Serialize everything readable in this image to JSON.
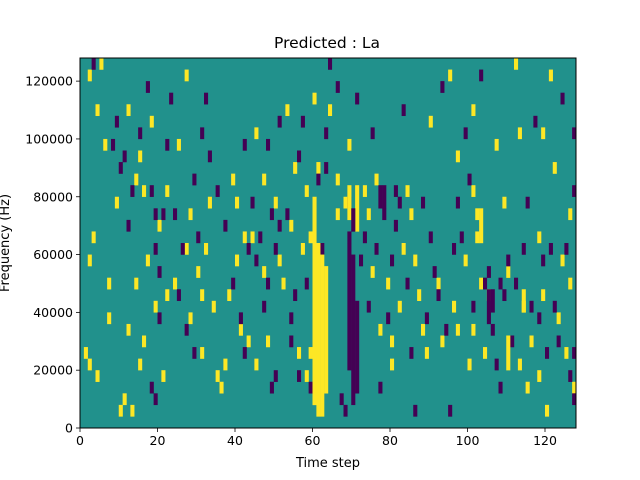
{
  "chart_data": {
    "type": "heatmap",
    "title": "Predicted : La",
    "xlabel": "Time step",
    "ylabel": "Frequency (Hz)",
    "xlim": [
      0,
      128
    ],
    "ylim": [
      0,
      128000
    ],
    "xticks": [
      0,
      20,
      40,
      60,
      80,
      100,
      120
    ],
    "xtick_labels": [
      "0",
      "20",
      "40",
      "60",
      "80",
      "100",
      "120"
    ],
    "yticks": [
      0,
      20000,
      40000,
      60000,
      80000,
      100000,
      120000
    ],
    "ytick_labels": [
      "0",
      "20000",
      "40000",
      "60000",
      "80000",
      "100000",
      "120000"
    ],
    "grid": false,
    "legend": "none",
    "colors": {
      "background": "#21918c",
      "high": "#fde725",
      "low": "#440154"
    },
    "value_levels": {
      "low": 0,
      "mid": 1,
      "high": 2
    },
    "cell_height_hz": 4000,
    "cells_high": [
      [
        2,
        120000
      ],
      [
        5,
        124000
      ],
      [
        4,
        108000
      ],
      [
        3,
        64000
      ],
      [
        2,
        56000
      ],
      [
        1,
        24000
      ],
      [
        2,
        20000
      ],
      [
        4,
        16000
      ],
      [
        6,
        96000
      ],
      [
        7,
        48000
      ],
      [
        7,
        36000
      ],
      [
        9,
        76000
      ],
      [
        11,
        8000
      ],
      [
        12,
        32000
      ],
      [
        10,
        4000
      ],
      [
        13,
        4000
      ],
      [
        12,
        108000
      ],
      [
        15,
        92000
      ],
      [
        18,
        104000
      ],
      [
        14,
        84000
      ],
      [
        16,
        80000
      ],
      [
        17,
        56000
      ],
      [
        14,
        48000
      ],
      [
        16,
        28000
      ],
      [
        15,
        20000
      ],
      [
        20,
        68000
      ],
      [
        22,
        80000
      ],
      [
        24,
        48000
      ],
      [
        22,
        44000
      ],
      [
        19,
        40000
      ],
      [
        21,
        16000
      ],
      [
        27,
        120000
      ],
      [
        25,
        96000
      ],
      [
        28,
        72000
      ],
      [
        27,
        60000
      ],
      [
        30,
        52000
      ],
      [
        28,
        36000
      ],
      [
        31,
        24000
      ],
      [
        33,
        76000
      ],
      [
        32,
        60000
      ],
      [
        34,
        40000
      ],
      [
        31,
        44000
      ],
      [
        36,
        12000
      ],
      [
        35,
        16000
      ],
      [
        39,
        84000
      ],
      [
        40,
        76000
      ],
      [
        42,
        64000
      ],
      [
        40,
        56000
      ],
      [
        38,
        44000
      ],
      [
        41,
        32000
      ],
      [
        43,
        28000
      ],
      [
        37,
        20000
      ],
      [
        45,
        100000
      ],
      [
        47,
        84000
      ],
      [
        44,
        64000
      ],
      [
        47,
        52000
      ],
      [
        45,
        20000
      ],
      [
        50,
        76000
      ],
      [
        51,
        56000
      ],
      [
        52,
        48000
      ],
      [
        48,
        28000
      ],
      [
        53,
        108000
      ],
      [
        54,
        68000
      ],
      [
        55,
        88000
      ],
      [
        57,
        60000
      ],
      [
        56,
        24000
      ],
      [
        58,
        16000
      ],
      [
        60,
        112000
      ],
      [
        58,
        80000
      ],
      [
        60,
        76000
      ],
      [
        61,
        88000
      ],
      [
        60,
        8000
      ],
      [
        64,
        108000
      ],
      [
        66,
        84000
      ],
      [
        66,
        72000
      ],
      [
        68,
        76000
      ],
      [
        69,
        96000
      ],
      [
        73,
        80000
      ],
      [
        74,
        72000
      ],
      [
        76,
        84000
      ],
      [
        75,
        52000
      ],
      [
        77,
        32000
      ],
      [
        79,
        48000
      ],
      [
        80,
        28000
      ],
      [
        80,
        20000
      ],
      [
        83,
        60000
      ],
      [
        82,
        40000
      ],
      [
        84,
        80000
      ],
      [
        85,
        72000
      ],
      [
        86,
        56000
      ],
      [
        87,
        44000
      ],
      [
        88,
        32000
      ],
      [
        89,
        24000
      ],
      [
        90,
        104000
      ],
      [
        92,
        48000
      ],
      [
        93,
        28000
      ],
      [
        95,
        120000
      ],
      [
        96,
        40000
      ],
      [
        97,
        92000
      ],
      [
        97,
        32000
      ],
      [
        99,
        56000
      ],
      [
        100,
        20000
      ],
      [
        101,
        108000
      ],
      [
        101,
        80000
      ],
      [
        102,
        72000
      ],
      [
        102,
        64000
      ],
      [
        103,
        48000
      ],
      [
        101,
        32000
      ],
      [
        104,
        24000
      ],
      [
        105,
        44000
      ],
      [
        107,
        96000
      ],
      [
        109,
        76000
      ],
      [
        110,
        52000
      ],
      [
        112,
        124000
      ],
      [
        113,
        100000
      ],
      [
        114,
        40000
      ],
      [
        113,
        20000
      ],
      [
        116,
        28000
      ],
      [
        115,
        12000
      ],
      [
        118,
        16000
      ],
      [
        118,
        64000
      ],
      [
        119,
        44000
      ],
      [
        119,
        100000
      ],
      [
        120,
        4000
      ],
      [
        121,
        120000
      ],
      [
        122,
        88000
      ],
      [
        123,
        36000
      ],
      [
        124,
        56000
      ],
      [
        125,
        24000
      ],
      [
        126,
        48000
      ],
      [
        126,
        72000
      ],
      [
        127,
        12000
      ]
    ],
    "cells_low": [
      [
        3,
        124000
      ],
      [
        9,
        104000
      ],
      [
        8,
        96000
      ],
      [
        10,
        88000
      ],
      [
        11,
        92000
      ],
      [
        12,
        68000
      ],
      [
        13,
        80000
      ],
      [
        15,
        100000
      ],
      [
        17,
        116000
      ],
      [
        18,
        80000
      ],
      [
        19,
        60000
      ],
      [
        20,
        52000
      ],
      [
        19,
        72000
      ],
      [
        21,
        72000
      ],
      [
        20,
        36000
      ],
      [
        18,
        12000
      ],
      [
        19,
        8000
      ],
      [
        23,
        112000
      ],
      [
        22,
        96000
      ],
      [
        24,
        72000
      ],
      [
        26,
        60000
      ],
      [
        25,
        44000
      ],
      [
        27,
        32000
      ],
      [
        29,
        24000
      ],
      [
        29,
        84000
      ],
      [
        30,
        64000
      ],
      [
        31,
        100000
      ],
      [
        32,
        112000
      ],
      [
        33,
        92000
      ],
      [
        35,
        80000
      ],
      [
        37,
        68000
      ],
      [
        39,
        48000
      ],
      [
        42,
        96000
      ],
      [
        41,
        36000
      ],
      [
        42,
        24000
      ],
      [
        43,
        60000
      ],
      [
        44,
        76000
      ],
      [
        45,
        56000
      ],
      [
        46,
        64000
      ],
      [
        47,
        40000
      ],
      [
        48,
        48000
      ],
      [
        49,
        72000
      ],
      [
        48,
        96000
      ],
      [
        50,
        60000
      ],
      [
        49,
        12000
      ],
      [
        50,
        16000
      ],
      [
        51,
        68000
      ],
      [
        51,
        104000
      ],
      [
        53,
        72000
      ],
      [
        54,
        36000
      ],
      [
        56,
        92000
      ],
      [
        55,
        44000
      ],
      [
        57,
        104000
      ],
      [
        54,
        28000
      ],
      [
        56,
        16000
      ],
      [
        58,
        48000
      ],
      [
        59,
        12000
      ],
      [
        61,
        84000
      ],
      [
        62,
        60000
      ],
      [
        63,
        88000
      ],
      [
        63,
        100000
      ],
      [
        64,
        124000
      ],
      [
        66,
        116000
      ],
      [
        67,
        8000
      ],
      [
        68,
        4000
      ],
      [
        69,
        76000
      ],
      [
        69,
        64000
      ],
      [
        71,
        112000
      ],
      [
        72,
        56000
      ],
      [
        73,
        64000
      ],
      [
        74,
        40000
      ],
      [
        75,
        100000
      ],
      [
        76,
        60000
      ],
      [
        77,
        12000
      ],
      [
        78,
        72000
      ],
      [
        79,
        36000
      ],
      [
        80,
        56000
      ],
      [
        81,
        80000
      ],
      [
        82,
        76000
      ],
      [
        81,
        68000
      ],
      [
        83,
        108000
      ],
      [
        84,
        48000
      ],
      [
        85,
        24000
      ],
      [
        86,
        4000
      ],
      [
        88,
        76000
      ],
      [
        89,
        36000
      ],
      [
        90,
        64000
      ],
      [
        91,
        52000
      ],
      [
        92,
        44000
      ],
      [
        93,
        116000
      ],
      [
        94,
        32000
      ],
      [
        95,
        4000
      ],
      [
        96,
        60000
      ],
      [
        97,
        76000
      ],
      [
        98,
        64000
      ],
      [
        99,
        100000
      ],
      [
        100,
        84000
      ],
      [
        101,
        40000
      ],
      [
        103,
        120000
      ],
      [
        104,
        48000
      ],
      [
        105,
        52000
      ],
      [
        106,
        32000
      ],
      [
        107,
        20000
      ],
      [
        108,
        12000
      ],
      [
        108,
        48000
      ],
      [
        109,
        44000
      ],
      [
        110,
        56000
      ],
      [
        111,
        28000
      ],
      [
        112,
        48000
      ],
      [
        114,
        60000
      ],
      [
        115,
        76000
      ],
      [
        116,
        40000
      ],
      [
        117,
        104000
      ],
      [
        118,
        36000
      ],
      [
        119,
        56000
      ],
      [
        120,
        24000
      ],
      [
        121,
        60000
      ],
      [
        122,
        40000
      ],
      [
        123,
        28000
      ],
      [
        124,
        112000
      ],
      [
        125,
        60000
      ],
      [
        126,
        16000
      ],
      [
        127,
        80000
      ],
      [
        127,
        100000
      ],
      [
        127,
        24000
      ],
      [
        127,
        8000
      ]
    ],
    "columns": [
      {
        "x": 59,
        "from": 24000,
        "to": 28000,
        "level": "high"
      },
      {
        "x": 59,
        "from": 64000,
        "to": 68000,
        "level": "high"
      },
      {
        "x": 60,
        "from": 8000,
        "to": 76000,
        "level": "high"
      },
      {
        "x": 61,
        "from": 4000,
        "to": 64000,
        "level": "high"
      },
      {
        "x": 62,
        "from": 4000,
        "to": 60000,
        "level": "high"
      },
      {
        "x": 63,
        "from": 12000,
        "to": 56000,
        "level": "high"
      },
      {
        "x": 71,
        "from": 68000,
        "to": 84000,
        "level": "high"
      },
      {
        "x": 69,
        "from": 72000,
        "to": 84000,
        "level": "high"
      },
      {
        "x": 69,
        "from": 20000,
        "to": 64000,
        "level": "low"
      },
      {
        "x": 70,
        "from": 8000,
        "to": 60000,
        "level": "low"
      },
      {
        "x": 71,
        "from": 12000,
        "to": 44000,
        "level": "low"
      },
      {
        "x": 70,
        "from": 68000,
        "to": 76000,
        "level": "low"
      },
      {
        "x": 77,
        "from": 76000,
        "to": 84000,
        "level": "low"
      },
      {
        "x": 78,
        "from": 76000,
        "to": 84000,
        "level": "low"
      },
      {
        "x": 105,
        "from": 36000,
        "to": 48000,
        "level": "low"
      },
      {
        "x": 106,
        "from": 40000,
        "to": 48000,
        "level": "low"
      },
      {
        "x": 110,
        "from": 20000,
        "to": 32000,
        "level": "high"
      },
      {
        "x": 103,
        "from": 64000,
        "to": 76000,
        "level": "high"
      },
      {
        "x": 114,
        "from": 40000,
        "to": 48000,
        "level": "high"
      }
    ]
  }
}
